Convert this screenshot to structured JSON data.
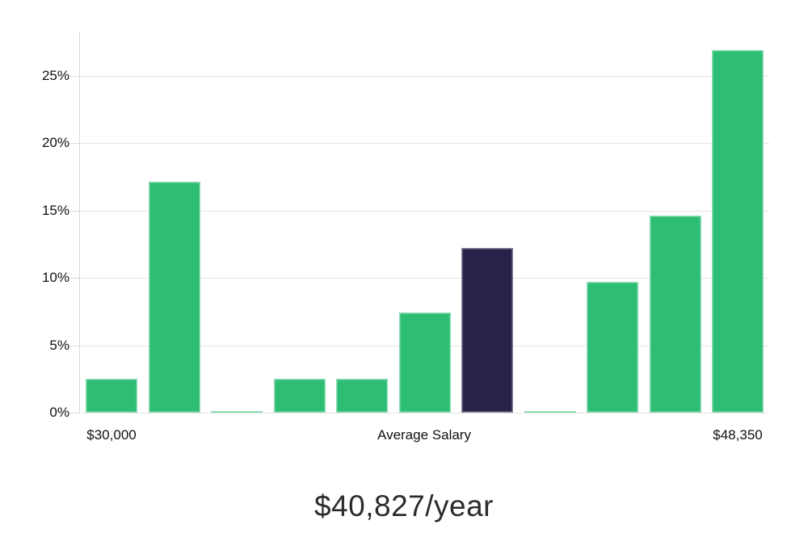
{
  "chart_data": {
    "type": "bar",
    "title": "$40,827/year",
    "xlabel": "",
    "ylabel": "",
    "y_unit": "%",
    "ylim": [
      0,
      28.3
    ],
    "grid": "horizontal",
    "legend": "none",
    "y_ticks": [
      {
        "value": 0,
        "label": "0%"
      },
      {
        "value": 5,
        "label": "5%"
      },
      {
        "value": 10,
        "label": "10%"
      },
      {
        "value": 15,
        "label": "15%"
      },
      {
        "value": 20,
        "label": "20%"
      },
      {
        "value": 25,
        "label": "25%"
      }
    ],
    "bars": [
      {
        "value": 2.5,
        "highlight": false
      },
      {
        "value": 17.1,
        "highlight": false
      },
      {
        "value": 0.1,
        "highlight": false
      },
      {
        "value": 2.5,
        "highlight": false
      },
      {
        "value": 2.5,
        "highlight": false
      },
      {
        "value": 7.4,
        "highlight": false
      },
      {
        "value": 12.2,
        "highlight": true
      },
      {
        "value": 0.1,
        "highlight": false
      },
      {
        "value": 9.7,
        "highlight": false
      },
      {
        "value": 14.6,
        "highlight": false
      },
      {
        "value": 26.9,
        "highlight": false
      }
    ],
    "highlight_meaning": "Average Salary",
    "x_ticks": [
      {
        "label": "$30,000",
        "anchor": "bar-0"
      },
      {
        "label": "Average Salary",
        "anchor": "plot-center"
      },
      {
        "label": "$48,350",
        "anchor": "bar-10"
      }
    ],
    "colors": {
      "bar_green": "#2dbd73",
      "bar_highlight": "#272249",
      "gridline": "#e4e4e4",
      "axis_line": "#d9d9d9",
      "tick_text": "#111111",
      "title_text": "#2b2b2b"
    }
  }
}
